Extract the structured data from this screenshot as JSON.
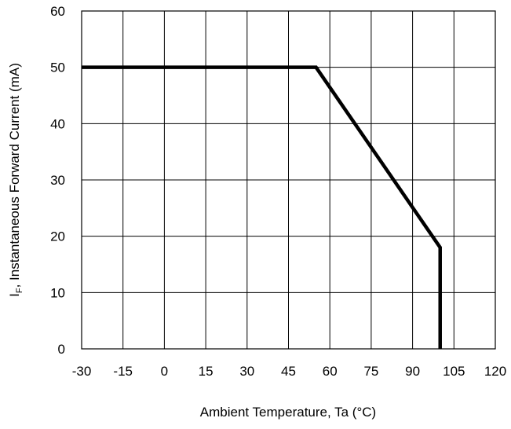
{
  "chart_data": {
    "type": "line",
    "xlabel": "Ambient Temperature, Ta (°C)",
    "ylabel_main": "I",
    "ylabel_sub": "F",
    "ylabel_rest": ", Instantaneous Forward Current (mA)",
    "xlim": [
      -30,
      120
    ],
    "ylim": [
      0,
      60
    ],
    "x_ticks": [
      "-30",
      "-15",
      "0",
      "15",
      "30",
      "45",
      "60",
      "75",
      "90",
      "105",
      "120"
    ],
    "y_ticks": [
      "0",
      "10",
      "20",
      "30",
      "40",
      "50",
      "60"
    ],
    "x_tick_values": [
      -30,
      -15,
      0,
      15,
      30,
      45,
      60,
      75,
      90,
      105,
      120
    ],
    "y_tick_values": [
      0,
      10,
      20,
      30,
      40,
      50,
      60
    ],
    "grid": true,
    "series": [
      {
        "x": [
          -30,
          55,
          100,
          100
        ],
        "y": [
          50,
          50,
          18,
          0
        ]
      }
    ],
    "colors": {
      "line": "#000000",
      "grid": "#000000"
    }
  }
}
